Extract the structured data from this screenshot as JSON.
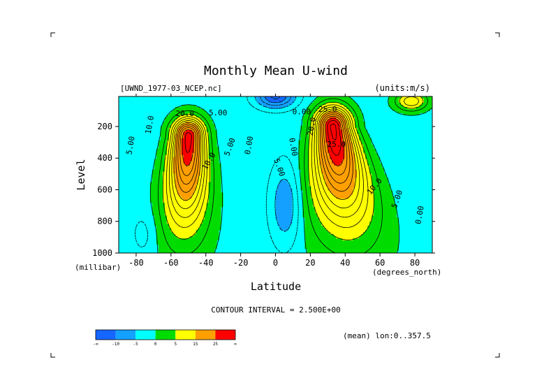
{
  "chart_data": {
    "type": "contour",
    "title": "Monthly Mean U-wind",
    "dataset_label": "[UWND_1977-03_NCEP.nc]",
    "units_label": "(units:m/s)",
    "xlabel": "Latitude",
    "x_units_label": "(degrees_north)",
    "ylabel": "Level",
    "y_units_label": "(millibar)",
    "xlim": [
      -90,
      90
    ],
    "ylim": [
      1000,
      10
    ],
    "y_inverted": true,
    "x_ticks": [
      {
        "v": -80,
        "label": "-80"
      },
      {
        "v": -60,
        "label": "-60"
      },
      {
        "v": -40,
        "label": "-40"
      },
      {
        "v": -20,
        "label": "-20"
      },
      {
        "v": 0,
        "label": "0"
      },
      {
        "v": 20,
        "label": "20"
      },
      {
        "v": 40,
        "label": "40"
      },
      {
        "v": 60,
        "label": "60"
      },
      {
        "v": 80,
        "label": "80"
      }
    ],
    "y_ticks": [
      {
        "v": 200,
        "label": "200"
      },
      {
        "v": 400,
        "label": "400"
      },
      {
        "v": 600,
        "label": "600"
      },
      {
        "v": 800,
        "label": "800"
      },
      {
        "v": 1000,
        "label": "1000"
      }
    ],
    "contour_interval_text": "CONTOUR INTERVAL = 2.500E+00",
    "mean_text": "(mean) lon:0..357.5",
    "jets": [
      {
        "lat": -50,
        "level": 260,
        "peak": 30
      },
      {
        "lat": 33,
        "level": 200,
        "peak": 32
      }
    ],
    "contour_labels": [
      {
        "x": -83,
        "y": 320,
        "text": "5.00",
        "rot": -80
      },
      {
        "x": -72,
        "y": 190,
        "text": "10.0",
        "rot": -80
      },
      {
        "x": -52,
        "y": 120,
        "text": "20.0",
        "rot": 0
      },
      {
        "x": -33,
        "y": 115,
        "text": "5.00",
        "rot": 0
      },
      {
        "x": -38,
        "y": 420,
        "text": "10.0",
        "rot": -60
      },
      {
        "x": -26,
        "y": 330,
        "text": "5.00",
        "rot": -70
      },
      {
        "x": -15,
        "y": 320,
        "text": "0.00",
        "rot": -80
      },
      {
        "x": 10,
        "y": 330,
        "text": "0.00",
        "rot": 80
      },
      {
        "x": 15,
        "y": 110,
        "text": "0.00",
        "rot": 0
      },
      {
        "x": 30,
        "y": 95,
        "text": "25.0",
        "rot": 0
      },
      {
        "x": 21,
        "y": 200,
        "text": "20.0",
        "rot": -80
      },
      {
        "x": 35,
        "y": 315,
        "text": "25.0",
        "rot": 0
      },
      {
        "x": 2,
        "y": 460,
        "text": "5.00",
        "rot": 70
      },
      {
        "x": 57,
        "y": 580,
        "text": "10.0",
        "rot": -50
      },
      {
        "x": 70,
        "y": 660,
        "text": "5.00",
        "rot": -70
      },
      {
        "x": 83,
        "y": 760,
        "text": "0.00",
        "rot": -80
      }
    ],
    "colorbar": {
      "colors": [
        "#1466ff",
        "#14a0ff",
        "#00ffff",
        "#00dc00",
        "#ffff00",
        "#ffa000",
        "#ff0000"
      ],
      "labels": [
        "-∞",
        "-10",
        "-5",
        "0",
        "5",
        "15",
        "25",
        "∞"
      ]
    }
  }
}
